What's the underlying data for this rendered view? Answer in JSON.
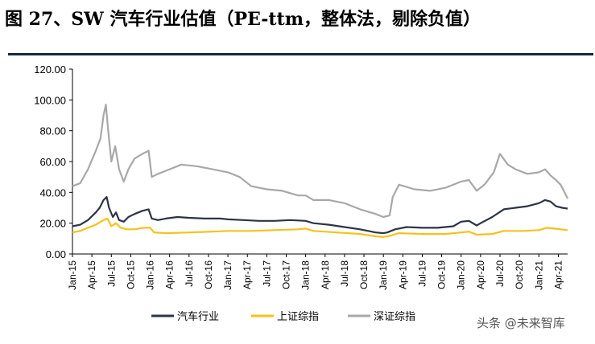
{
  "figure_title": "图 27、SW 汽车行业估值（PE-ttm，整体法，剔除负值）",
  "watermark": "头条 @未来智库",
  "chart_data": {
    "type": "line",
    "title": "",
    "xlabel": "",
    "ylabel": "",
    "ylim": [
      0,
      120
    ],
    "yticks": [
      "0.00",
      "20.00",
      "40.00",
      "60.00",
      "80.00",
      "100.00",
      "120.00"
    ],
    "x_ticks": [
      "Jan-15",
      "Apr-15",
      "Jul-15",
      "Oct-15",
      "Jan-16",
      "Apr-16",
      "Jul-16",
      "Oct-16",
      "Jan-17",
      "Apr-17",
      "Jul-17",
      "Oct-17",
      "Jan-18",
      "Apr-18",
      "Jul-18",
      "Oct-18",
      "Jan-19",
      "Apr-19",
      "Jul-19",
      "Oct-19",
      "Jan-20",
      "Apr-20",
      "Jul-20",
      "Oct-20",
      "Jan-21",
      "Apr-21"
    ],
    "x_range": [
      2015.0,
      2021.37
    ],
    "grid": false,
    "legend_position": "bottom",
    "series": [
      {
        "name": "汽车行业",
        "color": "#2d3446",
        "points": [
          [
            2015.0,
            18
          ],
          [
            2015.1,
            19
          ],
          [
            2015.2,
            22
          ],
          [
            2015.3,
            27
          ],
          [
            2015.35,
            30
          ],
          [
            2015.4,
            35
          ],
          [
            2015.44,
            37
          ],
          [
            2015.47,
            30
          ],
          [
            2015.52,
            24
          ],
          [
            2015.56,
            27
          ],
          [
            2015.6,
            22
          ],
          [
            2015.66,
            21
          ],
          [
            2015.72,
            24
          ],
          [
            2015.8,
            26
          ],
          [
            2015.9,
            28
          ],
          [
            2015.98,
            29
          ],
          [
            2016.02,
            23
          ],
          [
            2016.1,
            22
          ],
          [
            2016.2,
            23
          ],
          [
            2016.35,
            24
          ],
          [
            2016.5,
            23.5
          ],
          [
            2016.7,
            23
          ],
          [
            2016.9,
            23
          ],
          [
            2017.0,
            22.5
          ],
          [
            2017.2,
            22
          ],
          [
            2017.4,
            21.5
          ],
          [
            2017.6,
            21.5
          ],
          [
            2017.8,
            22
          ],
          [
            2018.0,
            21.5
          ],
          [
            2018.1,
            20
          ],
          [
            2018.3,
            19
          ],
          [
            2018.5,
            17.5
          ],
          [
            2018.7,
            16
          ],
          [
            2018.9,
            14
          ],
          [
            2019.0,
            13.5
          ],
          [
            2019.05,
            14
          ],
          [
            2019.15,
            16
          ],
          [
            2019.3,
            17.5
          ],
          [
            2019.5,
            17
          ],
          [
            2019.7,
            17
          ],
          [
            2019.9,
            18
          ],
          [
            2020.0,
            21
          ],
          [
            2020.1,
            21.5
          ],
          [
            2020.2,
            18.5
          ],
          [
            2020.25,
            20
          ],
          [
            2020.4,
            24
          ],
          [
            2020.55,
            29
          ],
          [
            2020.7,
            30
          ],
          [
            2020.85,
            31
          ],
          [
            2021.0,
            33
          ],
          [
            2021.08,
            35
          ],
          [
            2021.15,
            34
          ],
          [
            2021.22,
            31
          ],
          [
            2021.3,
            30
          ],
          [
            2021.37,
            29.5
          ]
        ]
      },
      {
        "name": "上证综指",
        "color": "#f5c21b",
        "points": [
          [
            2015.0,
            14
          ],
          [
            2015.1,
            15
          ],
          [
            2015.2,
            17
          ],
          [
            2015.3,
            19
          ],
          [
            2015.4,
            22
          ],
          [
            2015.45,
            23
          ],
          [
            2015.5,
            18
          ],
          [
            2015.56,
            20
          ],
          [
            2015.62,
            17
          ],
          [
            2015.7,
            16
          ],
          [
            2015.8,
            16
          ],
          [
            2015.9,
            17
          ],
          [
            2016.0,
            17
          ],
          [
            2016.05,
            14
          ],
          [
            2016.2,
            13.5
          ],
          [
            2016.5,
            14
          ],
          [
            2016.8,
            14.5
          ],
          [
            2017.0,
            15
          ],
          [
            2017.3,
            15
          ],
          [
            2017.6,
            15.5
          ],
          [
            2017.9,
            16
          ],
          [
            2018.0,
            16.5
          ],
          [
            2018.1,
            15
          ],
          [
            2018.4,
            14
          ],
          [
            2018.7,
            13
          ],
          [
            2018.9,
            11.5
          ],
          [
            2019.0,
            11
          ],
          [
            2019.1,
            12
          ],
          [
            2019.2,
            13.5
          ],
          [
            2019.5,
            13
          ],
          [
            2019.8,
            13
          ],
          [
            2020.0,
            14
          ],
          [
            2020.1,
            14.5
          ],
          [
            2020.2,
            12.5
          ],
          [
            2020.4,
            13
          ],
          [
            2020.55,
            15
          ],
          [
            2020.8,
            15
          ],
          [
            2021.0,
            15.5
          ],
          [
            2021.1,
            17
          ],
          [
            2021.2,
            16.5
          ],
          [
            2021.37,
            15.5
          ]
        ]
      },
      {
        "name": "深证综指",
        "color": "#a8a8a8",
        "points": [
          [
            2015.0,
            44
          ],
          [
            2015.1,
            46
          ],
          [
            2015.2,
            55
          ],
          [
            2015.3,
            67
          ],
          [
            2015.36,
            75
          ],
          [
            2015.4,
            90
          ],
          [
            2015.43,
            97
          ],
          [
            2015.46,
            80
          ],
          [
            2015.5,
            60
          ],
          [
            2015.55,
            70
          ],
          [
            2015.6,
            55
          ],
          [
            2015.66,
            47
          ],
          [
            2015.72,
            55
          ],
          [
            2015.8,
            62
          ],
          [
            2015.9,
            65
          ],
          [
            2015.98,
            67
          ],
          [
            2016.02,
            50
          ],
          [
            2016.1,
            52
          ],
          [
            2016.25,
            55
          ],
          [
            2016.4,
            58
          ],
          [
            2016.6,
            57
          ],
          [
            2016.8,
            55
          ],
          [
            2017.0,
            53
          ],
          [
            2017.15,
            50
          ],
          [
            2017.3,
            44
          ],
          [
            2017.5,
            42
          ],
          [
            2017.7,
            41
          ],
          [
            2017.9,
            38
          ],
          [
            2018.0,
            38
          ],
          [
            2018.1,
            35
          ],
          [
            2018.3,
            35
          ],
          [
            2018.5,
            33
          ],
          [
            2018.7,
            29
          ],
          [
            2018.9,
            26
          ],
          [
            2019.0,
            24
          ],
          [
            2019.08,
            25
          ],
          [
            2019.12,
            37
          ],
          [
            2019.2,
            45
          ],
          [
            2019.4,
            42
          ],
          [
            2019.6,
            41
          ],
          [
            2019.8,
            43
          ],
          [
            2020.0,
            47
          ],
          [
            2020.1,
            48
          ],
          [
            2020.2,
            41
          ],
          [
            2020.3,
            45
          ],
          [
            2020.42,
            53
          ],
          [
            2020.5,
            65
          ],
          [
            2020.6,
            58
          ],
          [
            2020.7,
            55
          ],
          [
            2020.85,
            52
          ],
          [
            2021.0,
            53
          ],
          [
            2021.08,
            55
          ],
          [
            2021.15,
            51
          ],
          [
            2021.22,
            48
          ],
          [
            2021.28,
            45
          ],
          [
            2021.33,
            40
          ],
          [
            2021.37,
            36
          ]
        ]
      }
    ]
  }
}
